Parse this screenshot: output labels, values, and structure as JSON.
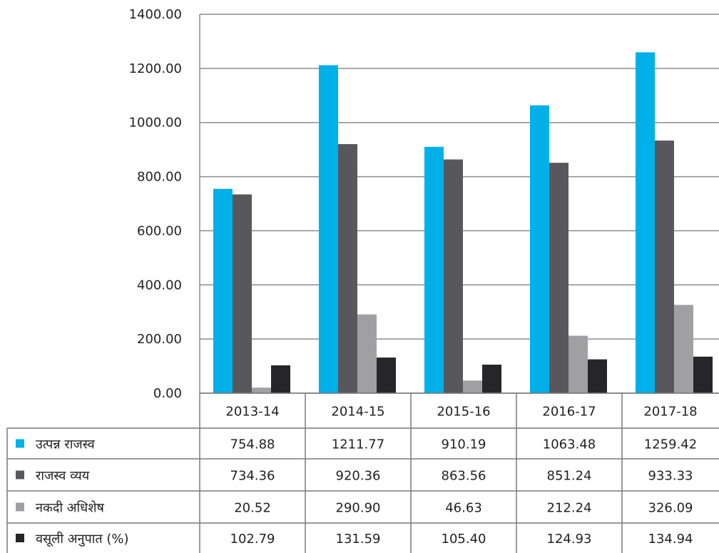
{
  "chart_data": {
    "type": "bar",
    "categories": [
      "2013-14",
      "2014-15",
      "2015-16",
      "2016-17",
      "2017-18"
    ],
    "series": [
      {
        "name": "उत्पन्न राजस्व",
        "color": "#00b0e8",
        "values": [
          754.88,
          1211.77,
          910.19,
          1063.48,
          1259.42
        ],
        "labels": [
          "754.88",
          "1211.77",
          "910.19",
          "1063.48",
          "1259.42"
        ]
      },
      {
        "name": "राजस्व व्यय",
        "color": "#58585c",
        "values": [
          734.36,
          920.36,
          863.56,
          851.24,
          933.33
        ],
        "labels": [
          "734.36",
          "920.36",
          "863.56",
          "851.24",
          "933.33"
        ]
      },
      {
        "name": "नकदी अधिशेष",
        "color": "#a0a0a2",
        "values": [
          20.52,
          290.9,
          46.63,
          212.24,
          326.09
        ],
        "labels": [
          "20.52",
          "290.90",
          "46.63",
          "212.24",
          "326.09"
        ]
      },
      {
        "name": "वसूली अनुपात (%)",
        "color": "#26262a",
        "values": [
          102.79,
          131.59,
          105.4,
          124.93,
          134.94
        ],
        "labels": [
          "102.79",
          "131.59",
          "105.40",
          "124.93",
          "134.94"
        ]
      }
    ],
    "ylim": [
      0,
      1400
    ],
    "yticks": [
      "0.00",
      "200.00",
      "400.00",
      "600.00",
      "800.00",
      "1000.00",
      "1200.00",
      "1400.00"
    ],
    "grid": true,
    "legend": "data-table"
  }
}
